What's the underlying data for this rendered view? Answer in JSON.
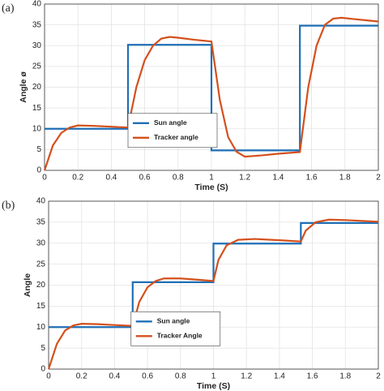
{
  "chart_data": [
    {
      "type": "line",
      "panel": "(a)",
      "x_label": "Time (S)",
      "y_label": "Angle ø",
      "xlim": [
        0,
        2
      ],
      "xticks": [
        0,
        0.2,
        0.4,
        0.6,
        0.8,
        1,
        1.2,
        1.4,
        1.6,
        1.8,
        2
      ],
      "ylim": [
        0,
        40
      ],
      "yticks": [
        0,
        5,
        10,
        15,
        20,
        25,
        30,
        35,
        40
      ],
      "grid": true,
      "legend": "lower center",
      "series": [
        {
          "name": "Sun angle",
          "color": "#1f6fb5",
          "x": [
            0,
            0.5,
            0.5,
            1,
            1,
            1.53,
            1.53,
            2
          ],
          "values": [
            10,
            10,
            30.2,
            30.2,
            4.8,
            4.8,
            34.8,
            34.8
          ]
        },
        {
          "name": "Tracker angle",
          "color": "#d4501c",
          "x": [
            0,
            0.05,
            0.1,
            0.15,
            0.2,
            0.3,
            0.4,
            0.5,
            0.55,
            0.6,
            0.65,
            0.7,
            0.75,
            0.8,
            0.9,
            1.0,
            1.05,
            1.1,
            1.15,
            1.2,
            1.3,
            1.4,
            1.53,
            1.58,
            1.63,
            1.68,
            1.73,
            1.78,
            1.85,
            1.95,
            2
          ],
          "values": [
            0,
            6,
            9,
            10.3,
            10.8,
            10.7,
            10.5,
            10.3,
            20,
            26.5,
            30,
            31.7,
            32.1,
            31.9,
            31.4,
            31,
            17,
            8,
            4.5,
            3.3,
            3.6,
            4,
            4.4,
            20,
            30,
            35,
            36.5,
            36.7,
            36.4,
            36,
            35.8
          ]
        }
      ]
    },
    {
      "type": "line",
      "panel": "(b)",
      "x_label": "Time (S)",
      "y_label": "Angle",
      "xlim": [
        0,
        2
      ],
      "xticks": [
        0,
        0.2,
        0.4,
        0.6,
        0.8,
        1,
        1.2,
        1.4,
        1.6,
        1.8,
        2
      ],
      "ylim": [
        0,
        40
      ],
      "yticks": [
        0,
        5,
        10,
        15,
        20,
        25,
        30,
        35,
        40
      ],
      "grid": true,
      "legend": "lower center",
      "series": [
        {
          "name": "Sun angle",
          "color": "#1f6fb5",
          "x": [
            0,
            0.51,
            0.51,
            1,
            1,
            1.53,
            1.53,
            2
          ],
          "values": [
            10,
            10,
            20.7,
            20.7,
            29.9,
            29.9,
            34.8,
            34.8
          ]
        },
        {
          "name": "Tracker Angle",
          "color": "#d4501c",
          "x": [
            0,
            0.05,
            0.1,
            0.15,
            0.2,
            0.3,
            0.4,
            0.51,
            0.55,
            0.6,
            0.65,
            0.7,
            0.8,
            0.9,
            1.0,
            1.03,
            1.08,
            1.15,
            1.25,
            1.4,
            1.53,
            1.56,
            1.62,
            1.7,
            1.8,
            1.9,
            2
          ],
          "values": [
            0,
            6,
            9.2,
            10.4,
            10.8,
            10.7,
            10.5,
            10.3,
            16,
            19.5,
            21,
            21.6,
            21.6,
            21.3,
            21,
            26,
            29.5,
            30.8,
            31,
            30.7,
            30.4,
            33,
            35,
            35.6,
            35.5,
            35.3,
            35.1
          ]
        }
      ]
    }
  ]
}
